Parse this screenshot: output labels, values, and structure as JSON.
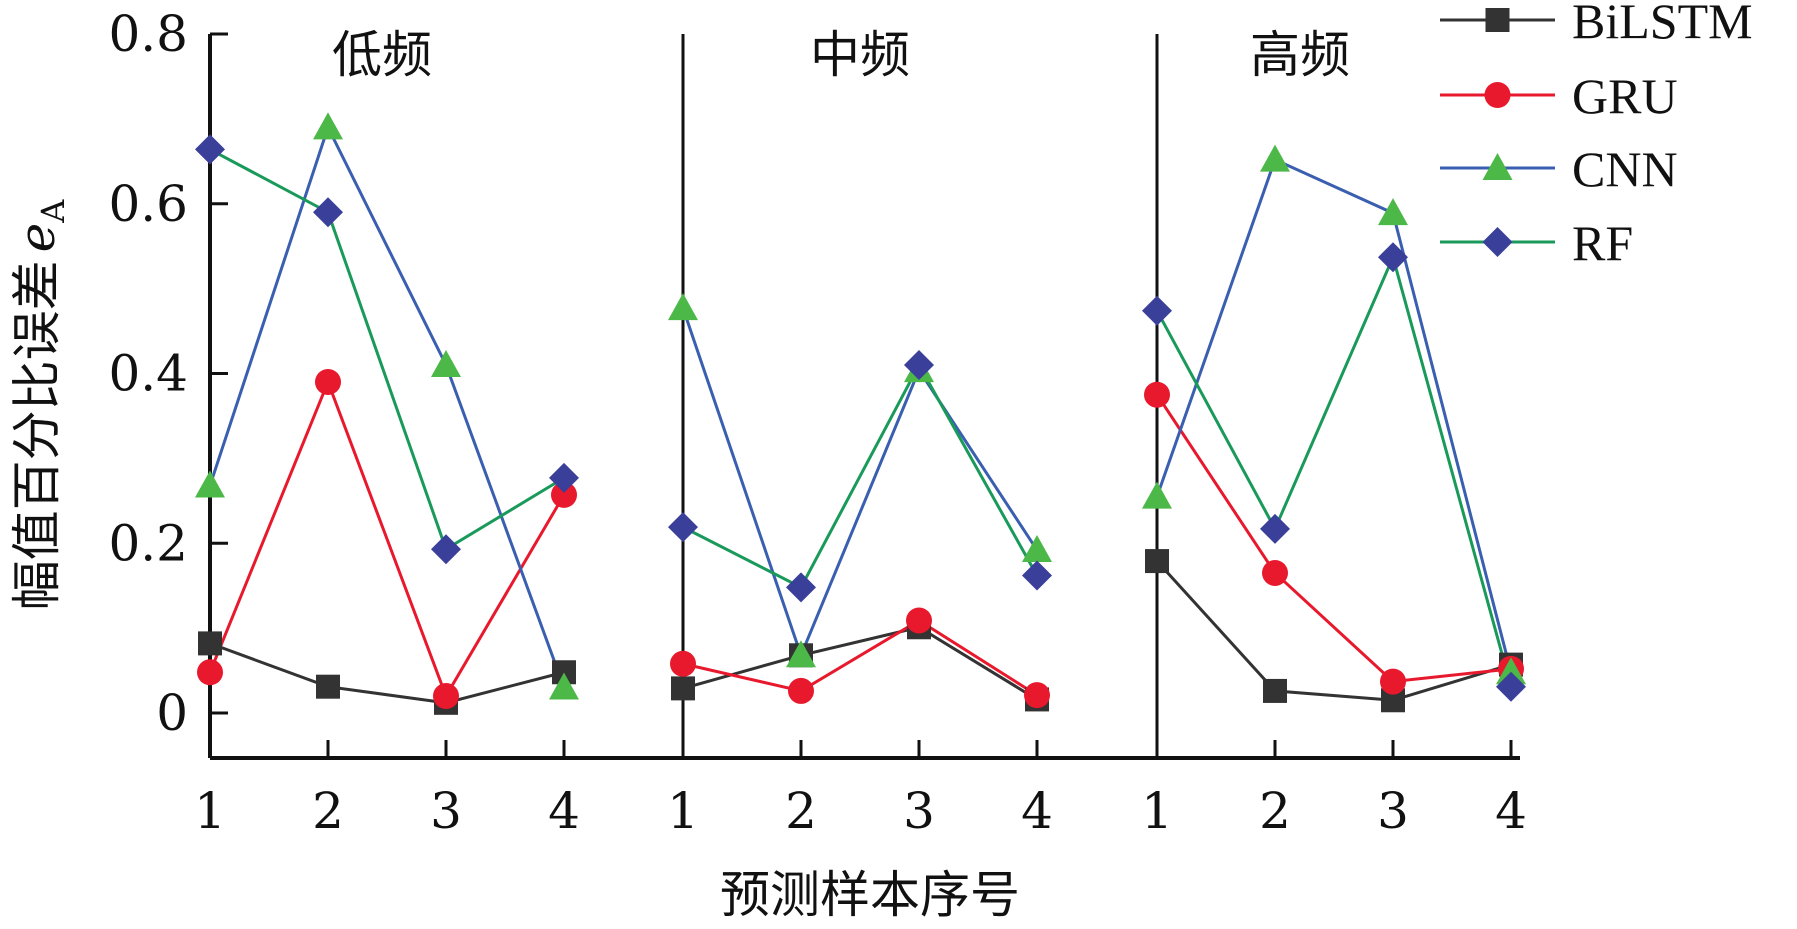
{
  "chart_data": {
    "type": "line",
    "title": "",
    "xlabel": "预测样本序号",
    "ylabel": "幅值百分比误差",
    "ylabel_symbol": "e",
    "ylabel_subscript": "A",
    "ylim": [
      -0.05,
      0.8
    ],
    "yticks": [
      0,
      0.2,
      0.4,
      0.6,
      0.8
    ],
    "ytick_labels": [
      "0",
      "0.2",
      "0.4",
      "0.6",
      "0.8"
    ],
    "groups": [
      {
        "label": "低频",
        "x_labels": [
          "1",
          "2",
          "3",
          "4"
        ]
      },
      {
        "label": "中频",
        "x_labels": [
          "1",
          "2",
          "3",
          "4"
        ]
      },
      {
        "label": "高频",
        "x_labels": [
          "1",
          "2",
          "3",
          "4"
        ]
      }
    ],
    "legend_position": "top-right",
    "series": [
      {
        "name": "BiLSTM",
        "color": "#333333",
        "marker": "square",
        "values": [
          [
            0.082,
            0.031,
            0.012,
            0.048
          ],
          [
            0.029,
            0.068,
            0.101,
            0.016
          ],
          [
            0.179,
            0.026,
            0.015,
            0.057
          ]
        ]
      },
      {
        "name": "GRU",
        "color": "#e8192c",
        "marker": "circle",
        "values": [
          [
            0.048,
            0.39,
            0.02,
            0.257
          ],
          [
            0.058,
            0.026,
            0.109,
            0.021
          ],
          [
            0.375,
            0.165,
            0.037,
            0.052
          ]
        ]
      },
      {
        "name": "CNN",
        "color": "#3a5fb0",
        "marker": "triangle",
        "marker_color": "#4cb848",
        "values": [
          [
            0.268,
            0.69,
            0.41,
            0.03
          ],
          [
            0.477,
            0.068,
            0.404,
            0.192
          ],
          [
            0.255,
            0.652,
            0.589,
            0.048
          ]
        ]
      },
      {
        "name": "RF",
        "color": "#1a9a5a",
        "marker": "diamond",
        "marker_color": "#3a3f9a",
        "values": [
          [
            0.664,
            0.59,
            0.193,
            0.277
          ],
          [
            0.219,
            0.148,
            0.41,
            0.162
          ],
          [
            0.474,
            0.217,
            0.537,
            0.031
          ]
        ]
      }
    ]
  }
}
